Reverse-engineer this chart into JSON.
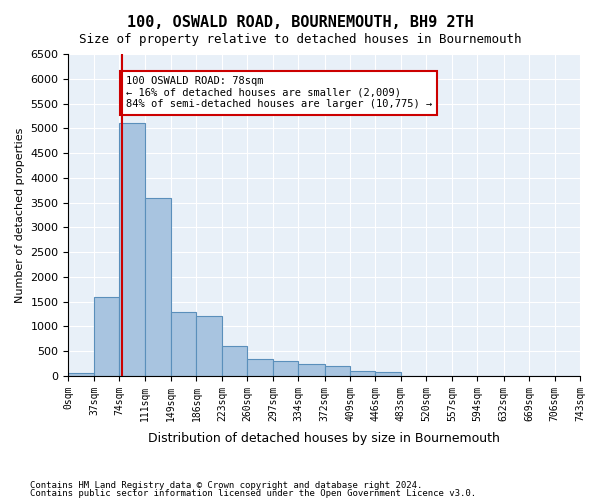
{
  "title_line1": "100, OSWALD ROAD, BOURNEMOUTH, BH9 2TH",
  "title_line2": "Size of property relative to detached houses in Bournemouth",
  "xlabel": "Distribution of detached houses by size in Bournemouth",
  "ylabel": "Number of detached properties",
  "bar_color": "#a8c4e0",
  "bar_edge_color": "#5a8fbb",
  "background_color": "#e8f0f8",
  "annotation_box_color": "#cc0000",
  "annotation_text_line1": "100 OSWALD ROAD: 78sqm",
  "annotation_text_line2": "← 16% of detached houses are smaller (2,009)",
  "annotation_text_line3": "84% of semi-detached houses are larger (10,775) →",
  "property_line_x": 78,
  "footnote1": "Contains HM Land Registry data © Crown copyright and database right 2024.",
  "footnote2": "Contains public sector information licensed under the Open Government Licence v3.0.",
  "bin_edges": [
    0,
    37,
    74,
    111,
    149,
    186,
    223,
    260,
    297,
    334,
    372,
    409,
    446,
    483,
    520,
    557,
    594,
    632,
    669,
    706,
    743
  ],
  "bin_labels": [
    "0sqm",
    "37sqm",
    "74sqm",
    "111sqm",
    "149sqm",
    "186sqm",
    "223sqm",
    "260sqm",
    "297sqm",
    "334sqm",
    "372sqm",
    "409sqm",
    "446sqm",
    "483sqm",
    "520sqm",
    "557sqm",
    "594sqm",
    "632sqm",
    "669sqm",
    "706sqm",
    "743sqm"
  ],
  "bar_heights": [
    50,
    1600,
    5100,
    3600,
    1300,
    1200,
    600,
    350,
    310,
    250,
    200,
    100,
    80,
    0,
    0,
    0,
    0,
    0,
    0,
    0
  ],
  "ylim": [
    0,
    6500
  ],
  "yticks": [
    0,
    500,
    1000,
    1500,
    2000,
    2500,
    3000,
    3500,
    4000,
    4500,
    5000,
    5500,
    6000,
    6500
  ]
}
